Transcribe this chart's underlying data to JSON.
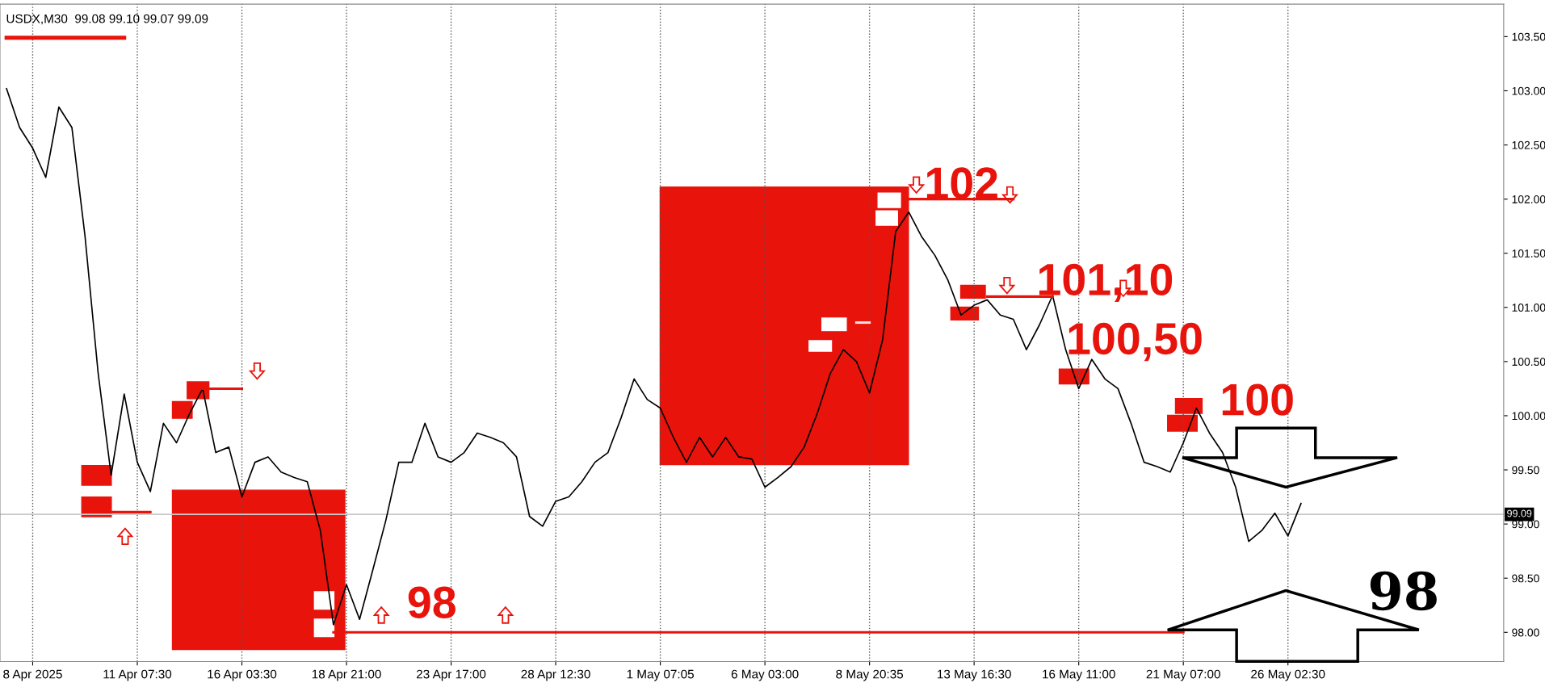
{
  "chart_data": {
    "type": "line",
    "title": "USDX,M30  99.08 99.10 99.07 99.09",
    "categories": [
      null,
      null,
      "8 Apr 2025",
      null,
      null,
      null,
      null,
      null,
      null,
      null,
      "11 Apr 07:30",
      null,
      null,
      null,
      null,
      null,
      null,
      null,
      "16 Apr 03:30",
      null,
      null,
      null,
      null,
      null,
      null,
      null,
      "18 Apr 21:00",
      null,
      null,
      null,
      null,
      null,
      null,
      null,
      "23 Apr 17:00",
      null,
      null,
      null,
      null,
      null,
      null,
      null,
      "28 Apr 12:30",
      null,
      null,
      null,
      null,
      null,
      null,
      null,
      "1 May 07:05",
      null,
      null,
      null,
      null,
      null,
      null,
      null,
      "6 May 03:00",
      null,
      null,
      null,
      null,
      null,
      null,
      null,
      "8 May 20:35",
      null,
      null,
      null,
      null,
      null,
      null,
      null,
      "13 May 16:30",
      null,
      null,
      null,
      null,
      null,
      null,
      null,
      "16 May 11:00",
      null,
      null,
      null,
      null,
      null,
      null,
      null,
      "21 May 07:00",
      null,
      null,
      null,
      null,
      null,
      null,
      null,
      "26 May 02:30",
      null,
      null,
      null,
      null,
      null,
      null,
      null,
      null,
      null,
      null,
      null,
      null,
      null,
      null,
      null,
      null
    ],
    "ylim": [
      97.73,
      103.8
    ],
    "yticks": [
      {
        "value": 98,
        "label": "98.00"
      },
      {
        "value": 98.5,
        "label": "98.50"
      },
      {
        "value": 99,
        "label": "99.00"
      },
      {
        "value": 99.5,
        "label": "99.50"
      },
      {
        "value": 100,
        "label": "100.00"
      },
      {
        "value": 100.5,
        "label": "100.50"
      },
      {
        "value": 101,
        "label": "101.00"
      },
      {
        "value": 101.5,
        "label": "101.50"
      },
      {
        "value": 102,
        "label": "102.00"
      },
      {
        "value": 102.5,
        "label": "102.50"
      },
      {
        "value": 103,
        "label": "103.00"
      },
      {
        "value": 103.5,
        "label": "103.50"
      }
    ],
    "grid": "x",
    "legend": false,
    "marker": "none",
    "line_style": "solid",
    "series": [
      {
        "color": "#000000",
        "values": [
          103.02,
          102.66,
          102.47,
          102.2,
          102.85,
          102.66,
          101.66,
          100.4,
          99.45,
          100.2,
          99.57,
          99.3,
          99.93,
          99.75,
          100.02,
          100.25,
          99.66,
          99.71,
          99.25,
          99.57,
          99.62,
          99.48,
          99.43,
          99.39,
          98.94,
          98.07,
          98.44,
          98.12,
          98.57,
          99.03,
          99.57,
          99.57,
          99.93,
          99.62,
          99.57,
          99.66,
          99.84,
          99.8,
          99.75,
          99.62,
          99.07,
          98.98,
          99.21,
          99.25,
          99.39,
          99.57,
          99.66,
          99.98,
          100.34,
          100.15,
          100.07,
          99.8,
          99.57,
          99.8,
          99.62,
          99.8,
          99.62,
          99.6,
          99.34,
          99.43,
          99.53,
          99.71,
          100.02,
          100.39,
          100.61,
          100.5,
          100.21,
          100.7,
          101.7,
          101.88,
          101.65,
          101.48,
          101.25,
          100.93,
          101.02,
          101.07,
          100.93,
          100.89,
          100.61,
          100.84,
          101.11,
          100.61,
          100.25,
          100.52,
          100.34,
          100.25,
          99.93,
          99.57,
          99.53,
          99.48,
          99.75,
          100.07,
          99.84,
          99.66,
          99.34,
          98.84,
          98.94,
          99.1,
          98.89,
          99.19,
          null,
          null,
          null,
          null,
          null,
          null,
          null,
          null,
          null,
          null,
          null,
          null,
          null,
          null,
          null
        ]
      },
      {
        "color": "#e8140c",
        "values": [
          103.49,
          103.49,
          103.49,
          103.49,
          103.49,
          103.49,
          103.49,
          103.49,
          103.49,
          103.49,
          null,
          null,
          null,
          null,
          null,
          null,
          null,
          null,
          null,
          null,
          null,
          null,
          null,
          null,
          null,
          null,
          null,
          null,
          null,
          null,
          null,
          null,
          null,
          null,
          null,
          null,
          null,
          null,
          null,
          null,
          null,
          null,
          null,
          null,
          null,
          null,
          null,
          null,
          null,
          null,
          null,
          null,
          null,
          null,
          null,
          null,
          null,
          null,
          null,
          null,
          null,
          null,
          null,
          null,
          null,
          null,
          null,
          null,
          null,
          null,
          null,
          null,
          null,
          null,
          null,
          null,
          null,
          null,
          null,
          null,
          null,
          null,
          null,
          null,
          null,
          null,
          null,
          null,
          null,
          null,
          null,
          null,
          null,
          null,
          null,
          null,
          null,
          null,
          null,
          null,
          null,
          null,
          null,
          null,
          null,
          null,
          null,
          null,
          null,
          null,
          null,
          null,
          null,
          null,
          null
        ]
      },
      {
        "color": "#e8140c",
        "values": [
          null,
          null,
          null,
          null,
          null,
          null,
          null,
          null,
          null,
          null,
          null,
          null,
          null,
          null,
          null,
          null,
          null,
          null,
          null,
          null,
          null,
          null,
          null,
          null,
          null,
          98.0,
          98.0,
          98.0,
          98.0,
          98.0,
          98.0,
          98.0,
          98.0,
          98.0,
          98.0,
          98.0,
          98.0,
          98.0,
          98.0,
          98.0,
          98.0,
          98.0,
          98.0,
          98.0,
          98.0,
          98.0,
          98.0,
          98.0,
          98.0,
          98.0,
          98.0,
          98.0,
          98.0,
          98.0,
          98.0,
          98.0,
          98.0,
          98.0,
          98.0,
          98.0,
          98.0,
          98.0,
          98.0,
          98.0,
          98.0,
          98.0,
          98.0,
          98.0,
          98.0,
          98.0,
          98.0,
          98.0,
          98.0,
          98.0,
          98.0,
          98.0,
          98.0,
          98.0,
          98.0,
          98.0,
          98.0,
          98.0,
          98.0,
          98.0,
          98.0,
          98.0,
          98.0,
          98.0,
          98.0,
          98.0,
          98.0,
          null,
          null,
          null,
          null,
          null,
          null,
          null,
          null,
          null,
          null,
          null,
          null,
          null,
          null,
          null,
          null,
          null,
          null,
          null,
          null,
          null,
          null,
          null,
          null
        ]
      },
      {
        "color": "#e8140c",
        "values": [
          null,
          null,
          null,
          null,
          null,
          null,
          null,
          null,
          null,
          null,
          null,
          null,
          null,
          null,
          null,
          null,
          null,
          null,
          null,
          null,
          null,
          null,
          null,
          null,
          null,
          null,
          null,
          null,
          null,
          null,
          null,
          null,
          null,
          null,
          null,
          null,
          null,
          null,
          null,
          null,
          null,
          null,
          null,
          null,
          null,
          null,
          null,
          null,
          null,
          null,
          null,
          null,
          null,
          null,
          null,
          null,
          null,
          null,
          null,
          null,
          null,
          null,
          null,
          null,
          null,
          null,
          null,
          null,
          null,
          102.0,
          102.0,
          102.0,
          102.0,
          102.0,
          102.0,
          102.0,
          102.0,
          102.0,
          null,
          null,
          null,
          null,
          null,
          null,
          null,
          null,
          null,
          null,
          null,
          null,
          null,
          null,
          null,
          null,
          null,
          null,
          null,
          null,
          null,
          null,
          null,
          null,
          null,
          null,
          null,
          null,
          null,
          null,
          null,
          null,
          null,
          null,
          null,
          null,
          null
        ]
      },
      {
        "color": "#e8140c",
        "values": [
          null,
          null,
          null,
          null,
          null,
          null,
          null,
          null,
          null,
          null,
          null,
          null,
          null,
          null,
          null,
          null,
          null,
          null,
          null,
          null,
          null,
          null,
          null,
          null,
          null,
          null,
          null,
          null,
          null,
          null,
          null,
          null,
          null,
          null,
          null,
          null,
          null,
          null,
          null,
          null,
          null,
          null,
          null,
          null,
          null,
          null,
          null,
          null,
          null,
          null,
          null,
          null,
          null,
          null,
          null,
          null,
          null,
          null,
          null,
          null,
          null,
          null,
          null,
          null,
          null,
          null,
          null,
          null,
          null,
          null,
          null,
          null,
          null,
          null,
          null,
          101.1,
          101.1,
          101.1,
          101.1,
          101.1,
          101.1,
          null,
          null,
          null,
          null,
          null,
          null,
          null,
          null,
          null,
          null,
          null,
          null,
          null,
          null,
          null,
          null,
          null,
          null,
          null,
          null,
          null,
          null,
          null,
          null,
          null,
          null,
          null,
          null,
          null,
          null,
          null,
          null,
          null,
          null
        ]
      },
      {
        "color": "#f8dcdc",
        "values": [
          null,
          null,
          null,
          null,
          null,
          null,
          null,
          null,
          null,
          null,
          null,
          null,
          null,
          null,
          null,
          null,
          null,
          null,
          null,
          null,
          null,
          null,
          null,
          null,
          null,
          null,
          null,
          null,
          null,
          null,
          null,
          null,
          null,
          null,
          null,
          null,
          null,
          null,
          null,
          null,
          null,
          null,
          null,
          null,
          null,
          null,
          null,
          null,
          null,
          null,
          null,
          null,
          null,
          null,
          null,
          null,
          null,
          null,
          null,
          null,
          null,
          null,
          null,
          null,
          null,
          100.86,
          100.86,
          null,
          null,
          null,
          null,
          null,
          null,
          null,
          null,
          null,
          null,
          null,
          null,
          null,
          null,
          null,
          null,
          null,
          null,
          null,
          null,
          null,
          null,
          null,
          null,
          null,
          null,
          null,
          null,
          null,
          null,
          null,
          null,
          null,
          null,
          null,
          null,
          null,
          null,
          null,
          null,
          null,
          null,
          null,
          null,
          null,
          null,
          null,
          null
        ]
      },
      {
        "color": "#e8140c",
        "values": [
          null,
          null,
          null,
          null,
          null,
          null,
          null,
          null,
          null,
          null,
          null,
          null,
          null,
          null,
          null,
          100.25,
          100.25,
          100.25,
          100.25,
          null,
          null,
          null,
          null,
          null,
          null,
          null,
          null,
          null,
          null,
          null,
          null,
          null,
          null,
          null,
          null,
          null,
          null,
          null,
          null,
          null,
          null,
          null,
          null,
          null,
          null,
          null,
          null,
          null,
          null,
          null,
          null,
          null,
          null,
          null,
          null,
          null,
          null,
          null,
          null,
          null,
          null,
          null,
          null,
          null,
          null,
          null,
          null,
          null,
          null,
          null,
          null,
          null,
          null,
          null,
          null,
          null,
          null,
          null,
          null,
          null,
          null,
          null,
          null,
          null,
          null,
          null,
          null,
          null,
          null,
          null,
          null,
          null,
          null,
          null,
          null,
          null,
          null,
          null,
          null,
          null,
          null,
          null,
          null,
          null,
          null,
          null,
          null,
          null,
          null,
          null,
          null,
          null,
          null,
          null,
          null
        ]
      },
      {
        "color": "#e8140c",
        "values": [
          null,
          null,
          null,
          null,
          null,
          null,
          null,
          null,
          99.11,
          99.11,
          99.11,
          99.11,
          null,
          null,
          null,
          null,
          null,
          null,
          null,
          null,
          null,
          null,
          null,
          null,
          null,
          null,
          null,
          null,
          null,
          null,
          null,
          null,
          null,
          null,
          null,
          null,
          null,
          null,
          null,
          null,
          null,
          null,
          null,
          null,
          null,
          null,
          null,
          null,
          null,
          null,
          null,
          null,
          null,
          null,
          null,
          null,
          null,
          null,
          null,
          null,
          null,
          null,
          null,
          null,
          null,
          null,
          null,
          null,
          null,
          null,
          null,
          null,
          null,
          null,
          null,
          null,
          null,
          null,
          null,
          null,
          null,
          null,
          null,
          null,
          null,
          null,
          null,
          null,
          null,
          null,
          null,
          null,
          null,
          null,
          null,
          null,
          null,
          null,
          null,
          null,
          null,
          null,
          null,
          null,
          null,
          null,
          null,
          null,
          null,
          null,
          null,
          null,
          null,
          null,
          null
        ]
      }
    ],
    "ref_lines": [
      {
        "axis": "y",
        "value": 99.09,
        "label": "99.09",
        "color": "#c8c8c8"
      }
    ],
    "annotations": [
      "102",
      "101,10",
      "100,50",
      "100",
      "98",
      "98"
    ]
  }
}
